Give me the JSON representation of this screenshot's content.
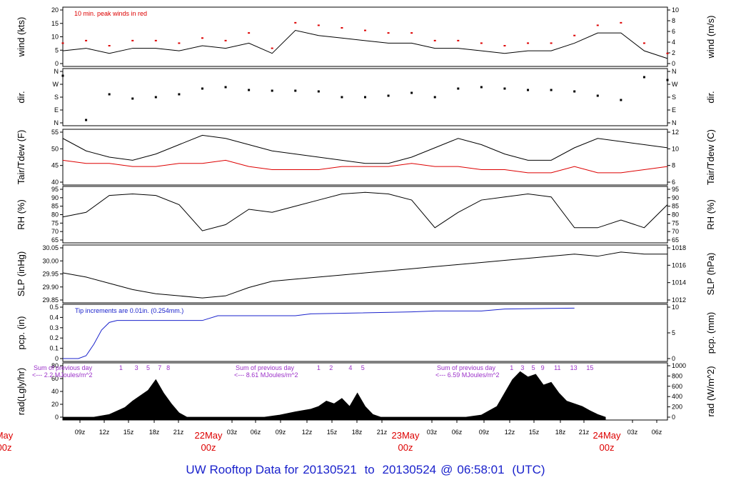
{
  "chart_data": {
    "type": "line",
    "footer": {
      "prefix": "UW Rooftop Data for",
      "start": "20130521",
      "to": "to",
      "end": "20130524",
      "at": "@",
      "time": "06:58:01",
      "tz": "(UTC)"
    },
    "time_axis": {
      "hour_labels": [
        "09z",
        "12z",
        "15z",
        "18z",
        "21z",
        "03z",
        "06z",
        "09z",
        "12z",
        "15z",
        "18z",
        "21z",
        "03z",
        "06z",
        "09z",
        "12z",
        "15z",
        "18z",
        "21z",
        "03z",
        "06z"
      ],
      "day_labels": [
        {
          "day": "May",
          "hour": "00z"
        },
        {
          "day": "22May",
          "hour": "00z"
        },
        {
          "day": "23May",
          "hour": "00z"
        },
        {
          "day": "24May",
          "hour": "00z"
        }
      ],
      "day_colors": "#dd0000"
    },
    "panels": [
      {
        "id": "wind",
        "ylabel_left": "wind (kts)",
        "ylabel_right": "wind (m/s)",
        "ylim": [
          0,
          21
        ],
        "ticks_left": [
          "0",
          "5",
          "10",
          "15",
          "20"
        ],
        "ticks_right": [
          "0",
          "2",
          "4",
          "6",
          "8",
          "10"
        ],
        "annotation": "10 min. peak winds in red",
        "series": [
          {
            "color": "#000000",
            "x": [
              0,
              3,
              6,
              9,
              12,
              15,
              18,
              21,
              24,
              27,
              30,
              33,
              36,
              39,
              42,
              45,
              48,
              51,
              54,
              57,
              60,
              63,
              66,
              69,
              72,
              75,
              78
            ],
            "values": [
              5,
              6,
              4,
              6,
              6,
              5,
              7,
              6,
              8,
              4,
              13,
              11,
              10,
              9,
              8,
              8,
              6,
              6,
              5,
              4,
              5,
              5,
              8,
              12,
              12,
              5,
              2
            ]
          },
          {
            "color": "#dd0000",
            "x": [
              0,
              3,
              6,
              9,
              12,
              15,
              18,
              21,
              24,
              27,
              30,
              33,
              36,
              39,
              42,
              45,
              48,
              51,
              54,
              57,
              60,
              63,
              66,
              69,
              72,
              75,
              78
            ],
            "values": [
              8,
              9,
              7,
              9,
              9,
              8,
              10,
              9,
              12,
              6,
              16,
              15,
              14,
              13,
              12,
              12,
              9,
              9,
              8,
              7,
              8,
              8,
              11,
              15,
              16,
              8,
              4
            ]
          }
        ]
      },
      {
        "id": "dir",
        "ylabel_left": "dir.",
        "ylabel_right": "dir.",
        "ticks_left": [
          "N",
          "E",
          "S",
          "W",
          "N"
        ],
        "ticks_right": [
          "N",
          "E",
          "S",
          "W",
          "N"
        ],
        "series": [
          {
            "color": "#000000",
            "x": [
              0,
              3,
              6,
              9,
              12,
              15,
              18,
              21,
              24,
              27,
              30,
              33,
              36,
              39,
              42,
              45,
              48,
              51,
              54,
              57,
              60,
              63,
              66,
              69,
              72,
              75,
              78
            ],
            "values": [
              330,
              20,
              200,
              170,
              180,
              200,
              240,
              250,
              230,
              225,
              225,
              220,
              180,
              180,
              190,
              210,
              180,
              240,
              250,
              240,
              230,
              230,
              220,
              190,
              160,
              320,
              300
            ]
          }
        ]
      },
      {
        "id": "temp",
        "ylabel_left": "Tair/Tdew (F)",
        "ylabel_right": "Tair/Tdew (C)",
        "ylim": [
          40,
          56
        ],
        "ticks_left": [
          "40",
          "45",
          "50",
          "55"
        ],
        "ticks_right": [
          "6",
          "8",
          "10",
          "12"
        ],
        "series": [
          {
            "color": "#000000",
            "x": [
              0,
              3,
              6,
              9,
              12,
              15,
              18,
              21,
              24,
              27,
              30,
              33,
              36,
              39,
              42,
              45,
              48,
              51,
              54,
              57,
              60,
              63,
              66,
              69,
              72,
              75,
              78
            ],
            "values": [
              54,
              50,
              48,
              47,
              49,
              52,
              55,
              54,
              52,
              50,
              49,
              48,
              47,
              46,
              46,
              48,
              51,
              54,
              52,
              49,
              47,
              47,
              51,
              54,
              53,
              52,
              51
            ]
          },
          {
            "color": "#dd0000",
            "x": [
              0,
              3,
              6,
              9,
              12,
              15,
              18,
              21,
              24,
              27,
              30,
              33,
              36,
              39,
              42,
              45,
              48,
              51,
              54,
              57,
              60,
              63,
              66,
              69,
              72,
              75,
              78
            ],
            "values": [
              47,
              46,
              46,
              45,
              45,
              46,
              46,
              47,
              45,
              44,
              44,
              44,
              45,
              45,
              45,
              46,
              45,
              45,
              44,
              44,
              43,
              43,
              45,
              43,
              43,
              44,
              45
            ]
          }
        ]
      },
      {
        "id": "rh",
        "ylabel_left": "RH (%)",
        "ylabel_right": "RH (%)",
        "ylim": [
          62,
          95
        ],
        "ticks_left": [
          "65",
          "70",
          "75",
          "80",
          "85",
          "90",
          "95"
        ],
        "ticks_right": [
          "65",
          "70",
          "75",
          "80",
          "85",
          "90",
          "95"
        ],
        "series": [
          {
            "color": "#000000",
            "x": [
              0,
              3,
              6,
              9,
              12,
              15,
              18,
              21,
              24,
              27,
              30,
              33,
              36,
              39,
              42,
              45,
              48,
              51,
              54,
              57,
              60,
              63,
              66,
              69,
              72,
              75,
              78
            ],
            "values": [
              77,
              80,
              91,
              92,
              91,
              85,
              68,
              72,
              82,
              80,
              84,
              88,
              92,
              93,
              92,
              88,
              70,
              80,
              88,
              90,
              92,
              90,
              70,
              70,
              75,
              70,
              85
            ]
          }
        ]
      },
      {
        "id": "slp",
        "ylabel_left": "SLP (inHg)",
        "ylabel_right": "SLP (hPa)",
        "ylim": [
          29.84,
          30.09
        ],
        "ticks_left": [
          "29.85",
          "29.90",
          "29.95",
          "30.00",
          "30.05"
        ],
        "ticks_right": [
          "1012",
          "1014",
          "1016",
          "1018"
        ],
        "series": [
          {
            "color": "#000000",
            "x": [
              0,
              3,
              6,
              9,
              12,
              15,
              18,
              21,
              24,
              27,
              30,
              33,
              36,
              39,
              42,
              45,
              48,
              51,
              54,
              57,
              60,
              63,
              66,
              69,
              72,
              75,
              78
            ],
            "values": [
              29.97,
              29.95,
              29.92,
              29.89,
              29.87,
              29.86,
              29.85,
              29.86,
              29.9,
              29.93,
              29.94,
              29.95,
              29.96,
              29.97,
              29.98,
              29.99,
              30.0,
              30.01,
              30.02,
              30.03,
              30.04,
              30.05,
              30.06,
              30.05,
              30.07,
              30.06,
              30.06
            ]
          }
        ]
      },
      {
        "id": "pcp",
        "ylabel_left": "pcp. (in)",
        "ylabel_right": "pcp. (mm)",
        "ylim": [
          0,
          0.54
        ],
        "ticks_left": [
          "0",
          "0.1",
          "0.2",
          "0.3",
          "0.4",
          "0.5"
        ],
        "ticks_right": [
          "0",
          "5",
          "10"
        ],
        "annotation": "Tip increments are 0.01in. (0.254mm.)",
        "series": [
          {
            "color": "#1a22cc",
            "x": [
              0,
              2,
              3,
              4,
              5,
              6,
              7,
              12,
              18,
              20,
              30,
              32,
              45,
              48,
              54,
              57,
              66
            ],
            "values": [
              0,
              0,
              0.03,
              0.15,
              0.3,
              0.38,
              0.4,
              0.4,
              0.4,
              0.45,
              0.45,
              0.47,
              0.49,
              0.5,
              0.5,
              0.52,
              0.53
            ]
          }
        ]
      },
      {
        "id": "rad",
        "ylabel_left": "rad(Lgly/hr)",
        "ylabel_right": "rad (W/m^2)",
        "ylim": [
          0,
          96
        ],
        "ticks_left": [
          "0",
          "20",
          "40",
          "60",
          "80"
        ],
        "ticks_right": [
          "0",
          "200",
          "400",
          "600",
          "800",
          "1000"
        ],
        "day_sums": [
          {
            "label": "Sum of previous day",
            "value": "<--- 2.2 MJoules/m^2"
          },
          {
            "label": "Sum of previous day",
            "value": "<--- 8.61 MJoules/m^2"
          },
          {
            "label": "Sum of previous day",
            "value": "<--- 6.59 MJoules/m^2"
          }
        ],
        "hour_markers": [
          {
            "x": 7.5,
            "label": "1"
          },
          {
            "x": 9.5,
            "label": "3"
          },
          {
            "x": 11.0,
            "label": "5"
          },
          {
            "x": 12.5,
            "label": "7"
          },
          {
            "x": 13.6,
            "label": "8"
          },
          {
            "x": 33.0,
            "label": "1"
          },
          {
            "x": 34.6,
            "label": "2"
          },
          {
            "x": 37.1,
            "label": "4"
          },
          {
            "x": 38.7,
            "label": "5"
          },
          {
            "x": 57.9,
            "label": "1"
          },
          {
            "x": 59.3,
            "label": "3"
          },
          {
            "x": 60.7,
            "label": "5"
          },
          {
            "x": 61.9,
            "label": "9"
          },
          {
            "x": 63.8,
            "label": "11"
          },
          {
            "x": 65.9,
            "label": "13"
          },
          {
            "x": 68.0,
            "label": "15"
          }
        ],
        "series": [
          {
            "color": "#000000",
            "x": [
              0,
              4,
              6,
              8,
              9,
              10,
              11,
              12,
              13,
              14,
              15,
              16,
              26,
              28,
              30,
              32,
              33,
              34,
              35,
              36,
              37,
              38,
              39,
              40,
              41,
              42,
              52,
              54,
              56,
              57,
              58,
              59,
              60,
              61,
              62,
              63,
              64,
              65,
              66,
              67,
              68,
              69,
              70
            ],
            "values": [
              0,
              0,
              5,
              18,
              30,
              40,
              50,
              70,
              45,
              25,
              8,
              0,
              0,
              4,
              10,
              15,
              20,
              30,
              25,
              35,
              20,
              45,
              20,
              5,
              0,
              0,
              0,
              4,
              20,
              45,
              70,
              85,
              75,
              80,
              60,
              65,
              45,
              30,
              25,
              20,
              12,
              5,
              0
            ]
          }
        ]
      }
    ]
  }
}
